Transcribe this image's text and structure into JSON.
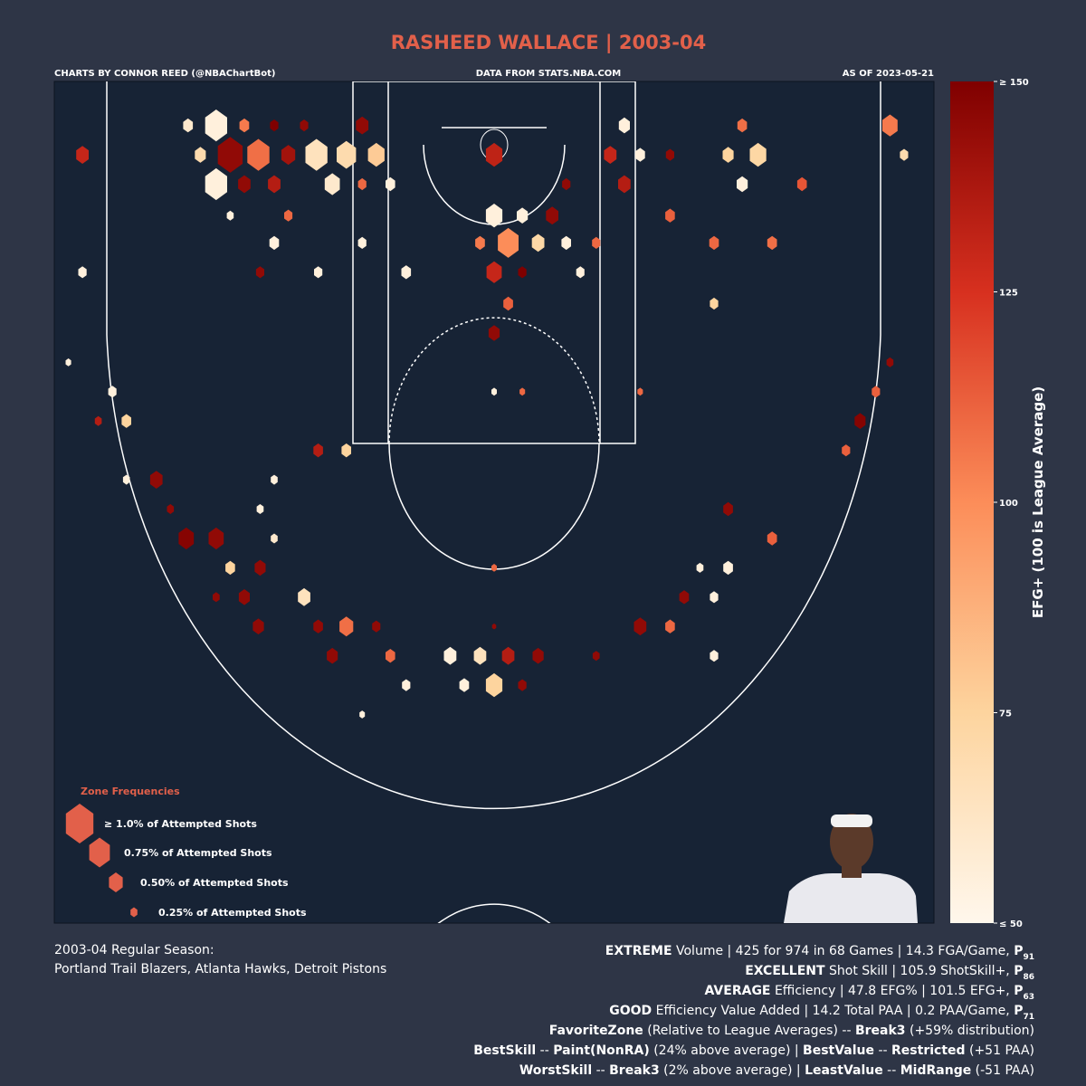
{
  "header": {
    "title": "RASHEED WALLACE | 2003-04",
    "credit": "CHARTS BY CONNOR REED (@NBAChartBot)",
    "source": "DATA FROM STATS.NBA.COM",
    "asof": "AS OF 2023-05-21"
  },
  "chart_data": {
    "type": "hexbin",
    "xlim": [
      -250,
      250
    ],
    "ylim": [
      -30,
      371.5
    ],
    "colorbar": {
      "label": "EFG+ (100 is League Average)",
      "clim": [
        50,
        150
      ],
      "ticks": [
        {
          "value": 150,
          "label": "≥ 150"
        },
        125,
        100,
        75,
        {
          "value": 50,
          "label": "≤ 50"
        }
      ],
      "colormap": [
        "#fff7ec",
        "#fdd49e",
        "#fc8d59",
        "#d7301f",
        "#7f0000"
      ]
    },
    "legend": {
      "title": "Zone Frequencies",
      "items": [
        {
          "size": 1.0,
          "label": "≥ 1.0% of Attempted Shots"
        },
        {
          "size": 0.75,
          "label": "0.75% of Attempted Shots"
        },
        {
          "size": 0.5,
          "label": "0.50% of Attempted Shots"
        },
        {
          "size": 0.25,
          "label": "0.25% of Attempted Shots"
        }
      ],
      "color": "#e2604a"
    },
    "x": [
      -158,
      -142,
      -125,
      -108,
      -75,
      -174,
      74,
      141,
      225,
      -234,
      -167,
      -150,
      -134,
      -117,
      -101,
      -84,
      -67,
      0,
      66,
      100,
      133,
      150,
      83,
      233,
      -158,
      -142,
      -125,
      -92,
      -75,
      -59,
      74,
      141,
      175,
      41,
      0,
      16,
      33,
      -117,
      100,
      -150,
      -8,
      8,
      25,
      41,
      58,
      -75,
      -125,
      125,
      158,
      0,
      -50,
      -234,
      -100,
      49,
      -133,
      16,
      8,
      125,
      0,
      -242,
      225,
      -217,
      217,
      0,
      16,
      83,
      -209,
      208,
      -225,
      -100,
      -84,
      200,
      -192,
      -209,
      -125,
      133,
      -133,
      -184,
      -175,
      -158,
      -125,
      158,
      -150,
      -133,
      133,
      0,
      117,
      -142,
      -108,
      108,
      125,
      -158,
      -134,
      -100,
      -84,
      -67,
      83,
      100,
      0,
      -92,
      -59,
      -25,
      -8,
      8,
      25,
      58,
      125,
      0,
      -17,
      -50,
      16,
      -75
    ],
    "y": [
      -9,
      -9,
      -9,
      -9,
      -9,
      -9,
      -9,
      -9,
      -9,
      5,
      5,
      5,
      5,
      5,
      5,
      5,
      5,
      5,
      5,
      5,
      5,
      5,
      5,
      5,
      19,
      19,
      19,
      19,
      19,
      19,
      19,
      19,
      19,
      19,
      34,
      34,
      34,
      34,
      34,
      34,
      47,
      47,
      47,
      47,
      47,
      47,
      47,
      47,
      47,
      61,
      61,
      61,
      61,
      61,
      61,
      61,
      76,
      76,
      90,
      104,
      104,
      118,
      118,
      118,
      118,
      118,
      132,
      132,
      132,
      146,
      146,
      146,
      160,
      160,
      160,
      174,
      174,
      174,
      188,
      188,
      188,
      188,
      202,
      202,
      202,
      202,
      202,
      216,
      216,
      216,
      216,
      216,
      230,
      230,
      230,
      230,
      230,
      230,
      230,
      244,
      244,
      244,
      244,
      244,
      244,
      244,
      244,
      258,
      258,
      258,
      258,
      272
    ],
    "size": [
      0.8,
      0.35,
      0.3,
      0.3,
      0.45,
      0.35,
      0.4,
      0.35,
      0.55,
      0.45,
      0.4,
      0.9,
      0.8,
      0.5,
      0.8,
      0.7,
      0.6,
      0.6,
      0.45,
      0.3,
      0.4,
      0.6,
      0.35,
      0.3,
      0.8,
      0.45,
      0.45,
      0.55,
      0.3,
      0.35,
      0.45,
      0.4,
      0.35,
      0.3,
      0.6,
      0.4,
      0.45,
      0.3,
      0.35,
      0.25,
      0.35,
      0.75,
      0.45,
      0.35,
      0.3,
      0.3,
      0.35,
      0.35,
      0.35,
      0.55,
      0.35,
      0.3,
      0.3,
      0.3,
      0.3,
      0.3,
      0.35,
      0.3,
      0.4,
      0.2,
      0.25,
      0.3,
      0.3,
      0.2,
      0.2,
      0.2,
      0.35,
      0.4,
      0.25,
      0.35,
      0.35,
      0.3,
      0.45,
      0.25,
      0.25,
      0.35,
      0.25,
      0.25,
      0.55,
      0.55,
      0.25,
      0.35,
      0.35,
      0.4,
      0.35,
      0.2,
      0.25,
      0.4,
      0.45,
      0.35,
      0.3,
      0.25,
      0.4,
      0.35,
      0.5,
      0.3,
      0.45,
      0.35,
      0.15,
      0.4,
      0.35,
      0.45,
      0.45,
      0.45,
      0.4,
      0.25,
      0.3,
      0.6,
      0.35,
      0.3,
      0.3,
      0.2
    ],
    "values": [
      55,
      105,
      150,
      145,
      145,
      60,
      55,
      108,
      105,
      130,
      70,
      145,
      108,
      140,
      65,
      70,
      78,
      132,
      130,
      145,
      75,
      73,
      55,
      70,
      55,
      145,
      135,
      60,
      110,
      55,
      135,
      55,
      115,
      145,
      55,
      55,
      145,
      110,
      112,
      55,
      105,
      100,
      72,
      55,
      110,
      55,
      55,
      110,
      108,
      130,
      55,
      55,
      55,
      55,
      145,
      150,
      112,
      75,
      145,
      55,
      145,
      55,
      112,
      55,
      110,
      110,
      75,
      148,
      135,
      135,
      75,
      112,
      145,
      55,
      55,
      145,
      55,
      145,
      148,
      145,
      60,
      112,
      75,
      145,
      55,
      110,
      55,
      145,
      65,
      145,
      55,
      145,
      145,
      145,
      108,
      145,
      145,
      110,
      145,
      145,
      110,
      55,
      65,
      135,
      145,
      145,
      55,
      75,
      55,
      55,
      145,
      55
    ]
  },
  "footer": {
    "left": [
      "2003-04 Regular Season:",
      "Portland Trail Blazers, Atlanta Hawks, Detroit Pistons"
    ],
    "right": [
      [
        {
          "text": "EXTREME",
          "bold": true
        },
        {
          "text": " Volume | 425 for 974 in 68 Games | 14.3 FGA/Game, "
        },
        {
          "text": "P",
          "bold": true
        },
        {
          "text": "91",
          "bold": true,
          "sub": true
        }
      ],
      [
        {
          "text": "EXCELLENT",
          "bold": true
        },
        {
          "text": " Shot Skill | 105.9 ShotSkill+, "
        },
        {
          "text": "P",
          "bold": true
        },
        {
          "text": "86",
          "bold": true,
          "sub": true
        }
      ],
      [
        {
          "text": "AVERAGE",
          "bold": true
        },
        {
          "text": " Efficiency | 47.8 EFG% | 101.5 EFG+, "
        },
        {
          "text": "P",
          "bold": true
        },
        {
          "text": "63",
          "bold": true,
          "sub": true
        }
      ],
      [
        {
          "text": "GOOD",
          "bold": true
        },
        {
          "text": " Efficiency Value Added | 14.2 Total PAA | 0.2 PAA/Game, "
        },
        {
          "text": "P",
          "bold": true
        },
        {
          "text": "71",
          "bold": true,
          "sub": true
        }
      ],
      [
        {
          "text": "FavoriteZone",
          "bold": true
        },
        {
          "text": " (Relative to League Averages) -- "
        },
        {
          "text": "Break3",
          "bold": true
        },
        {
          "text": " (+59% distribution)"
        }
      ],
      [
        {
          "text": "BestSkill",
          "bold": true
        },
        {
          "text": " -- "
        },
        {
          "text": "Paint(NonRA)",
          "bold": true
        },
        {
          "text": " (24% above average) | "
        },
        {
          "text": "BestValue",
          "bold": true
        },
        {
          "text": " -- "
        },
        {
          "text": "Restricted",
          "bold": true
        },
        {
          "text": " (+51 PAA)"
        }
      ],
      [
        {
          "text": "WorstSkill",
          "bold": true
        },
        {
          "text": " -- "
        },
        {
          "text": "Break3",
          "bold": true
        },
        {
          "text": " (2% above average) | "
        },
        {
          "text": "LeastValue",
          "bold": true
        },
        {
          "text": " -- "
        },
        {
          "text": "MidRange",
          "bold": true
        },
        {
          "text": " (-51 PAA)"
        }
      ]
    ]
  }
}
